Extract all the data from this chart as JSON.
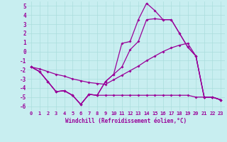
{
  "bg_color": "#c8eef0",
  "grid_color": "#aadddd",
  "line_color": "#990099",
  "marker": "D",
  "markersize": 2,
  "linewidth": 0.9,
  "xlabel": "Windchill (Refroidissement éolien,°C)",
  "xlabel_color": "#990099",
  "xlim": [
    -0.5,
    23.5
  ],
  "ylim": [
    -6.5,
    5.5
  ],
  "yticks": [
    -6,
    -5,
    -4,
    -3,
    -2,
    -1,
    0,
    1,
    2,
    3,
    4,
    5
  ],
  "xticks": [
    0,
    1,
    2,
    3,
    4,
    5,
    6,
    7,
    8,
    9,
    10,
    11,
    12,
    13,
    14,
    15,
    16,
    17,
    18,
    19,
    20,
    21,
    22,
    23
  ],
  "s1x": [
    0,
    1,
    2,
    3,
    4,
    5,
    6,
    7,
    8,
    9,
    10,
    11,
    12,
    13,
    14,
    15,
    16,
    17,
    18,
    19,
    20,
    21,
    22,
    23
  ],
  "s1y": [
    -1.7,
    -2.2,
    -3.3,
    -4.4,
    -4.3,
    -4.8,
    -5.8,
    -4.7,
    -4.8,
    -4.8,
    -4.8,
    -4.8,
    -4.8,
    -4.8,
    -4.8,
    -4.8,
    -4.8,
    -4.8,
    -4.8,
    -4.8,
    -5.0,
    -5.0,
    -5.0,
    -5.3
  ],
  "s2x": [
    0,
    1,
    2,
    3,
    4,
    5,
    6,
    7,
    8,
    9,
    10,
    11,
    12,
    13,
    14,
    15,
    16,
    17,
    18,
    19,
    20,
    21,
    22,
    23
  ],
  "s2y": [
    -1.7,
    -1.9,
    -2.2,
    -2.5,
    -2.7,
    -3.0,
    -3.2,
    -3.4,
    -3.5,
    -3.6,
    -3.1,
    -2.6,
    -2.1,
    -1.6,
    -1.0,
    -0.5,
    0.0,
    0.4,
    0.7,
    0.9,
    -0.5,
    -5.0,
    -5.0,
    -5.3
  ],
  "s3x": [
    0,
    1,
    2,
    3,
    4,
    5,
    6,
    7,
    8,
    9,
    10,
    11,
    12,
    13,
    14,
    15,
    16,
    17,
    18,
    19,
    20,
    21,
    22,
    23
  ],
  "s3y": [
    -1.7,
    -2.2,
    -3.3,
    -4.4,
    -4.3,
    -4.8,
    -5.8,
    -4.7,
    -4.8,
    -3.3,
    -2.5,
    -1.7,
    0.2,
    1.1,
    3.5,
    3.6,
    3.5,
    3.5,
    2.0,
    0.5,
    -0.5,
    -5.0,
    -5.0,
    -5.3
  ],
  "s4x": [
    0,
    1,
    2,
    3,
    4,
    5,
    6,
    7,
    8,
    9,
    10,
    11,
    12,
    13,
    14,
    15,
    16,
    17,
    18,
    19,
    20,
    21,
    22,
    23
  ],
  "s4y": [
    -1.7,
    -2.2,
    -3.3,
    -4.4,
    -4.3,
    -4.8,
    -5.8,
    -4.7,
    -4.8,
    -3.3,
    -2.5,
    0.9,
    1.1,
    3.5,
    5.3,
    4.5,
    3.5,
    3.5,
    2.0,
    0.5,
    -0.5,
    -5.0,
    -5.0,
    -5.3
  ]
}
